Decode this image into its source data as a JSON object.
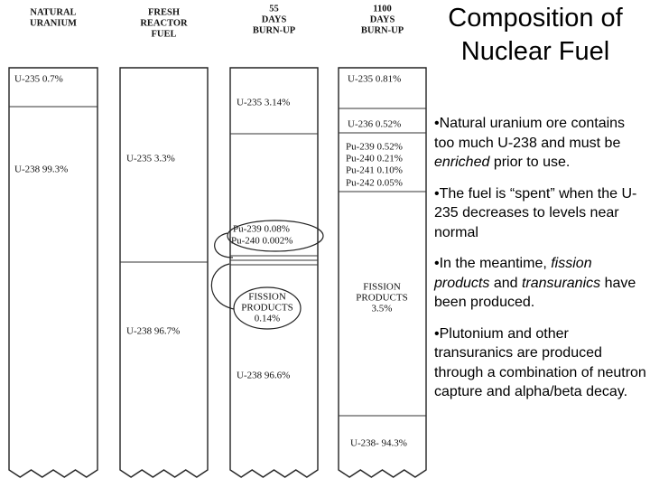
{
  "title": "Composition of Nuclear Fuel",
  "columns": [
    {
      "header": [
        "NATURAL",
        "URANIUM"
      ],
      "labels": [
        "U-235 0.7%",
        "U-238 99.3%"
      ]
    },
    {
      "header": [
        "FRESH",
        "REACTOR",
        "FUEL"
      ],
      "labels": [
        "U-235 3.3%",
        "U-238 96.7%"
      ]
    },
    {
      "header": [
        "55",
        "DAYS",
        "BURN-UP"
      ],
      "labels": [
        "U-235 3.14%",
        "Pu-239 0.08%",
        "Pu-240 0.002%",
        "FISSION",
        "PRODUCTS",
        "0.14%",
        "U-238 96.6%"
      ]
    },
    {
      "header": [
        "1100",
        "DAYS",
        "BURN-UP"
      ],
      "labels": [
        "U-235 0.81%",
        "U-236 0.52%",
        "Pu-239 0.52%",
        "Pu-240 0.21%",
        "Pu-241 0.10%",
        "Pu-242 0.05%",
        "FISSION",
        "PRODUCTS",
        "3.5%",
        "U-238- 94.3%"
      ]
    }
  ],
  "bullets": [
    [
      {
        "text": "Natural uranium ore contains too much U-238 and must be ",
        "italic": false
      },
      {
        "text": "enriched",
        "italic": true
      },
      {
        "text": " prior to use.",
        "italic": false
      }
    ],
    [
      {
        "text": "The fuel is “spent” when the U-235 decreases to levels near normal",
        "italic": false
      }
    ],
    [
      {
        "text": "In the meantime, ",
        "italic": false
      },
      {
        "text": "fission products",
        "italic": true
      },
      {
        "text": " and ",
        "italic": false
      },
      {
        "text": "transuranics",
        "italic": true
      },
      {
        "text": " have been produced.",
        "italic": false
      }
    ],
    [
      {
        "text": "Plutonium and other transuranics are produced through a combination of neutron capture and alpha/beta decay.",
        "italic": false
      }
    ]
  ]
}
